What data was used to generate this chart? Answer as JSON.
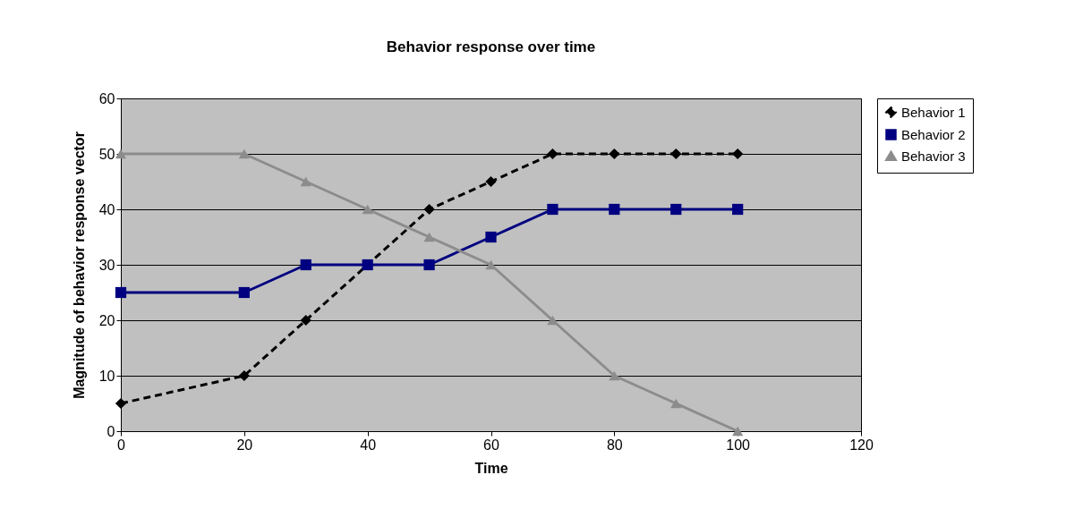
{
  "chart_data": {
    "type": "line",
    "title": "Behavior response over time",
    "xlabel": "Time",
    "ylabel": "Magnitude of behavior response vector",
    "x": [
      0,
      20,
      30,
      40,
      50,
      60,
      70,
      80,
      90,
      100
    ],
    "series": [
      {
        "name": "Behavior 1",
        "color": "#000000",
        "marker": "diamond",
        "line_style": "dashed",
        "values": [
          5,
          10,
          20,
          30,
          40,
          45,
          50,
          50,
          50,
          50
        ]
      },
      {
        "name": "Behavior 2",
        "color": "#000080",
        "marker": "square",
        "line_style": "solid",
        "values": [
          25,
          25,
          30,
          30,
          30,
          35,
          40,
          40,
          40,
          40
        ]
      },
      {
        "name": "Behavior 3",
        "color": "#8c8c8c",
        "marker": "triangle",
        "line_style": "solid",
        "values": [
          50,
          50,
          45,
          40,
          35,
          30,
          20,
          10,
          5,
          0
        ]
      }
    ],
    "xlim": [
      0,
      120
    ],
    "xticks": [
      0,
      20,
      40,
      60,
      80,
      100,
      120
    ],
    "ylim": [
      0,
      60
    ],
    "yticks": [
      0,
      10,
      20,
      30,
      40,
      50,
      60
    ],
    "grid": "y",
    "legend": "right"
  }
}
